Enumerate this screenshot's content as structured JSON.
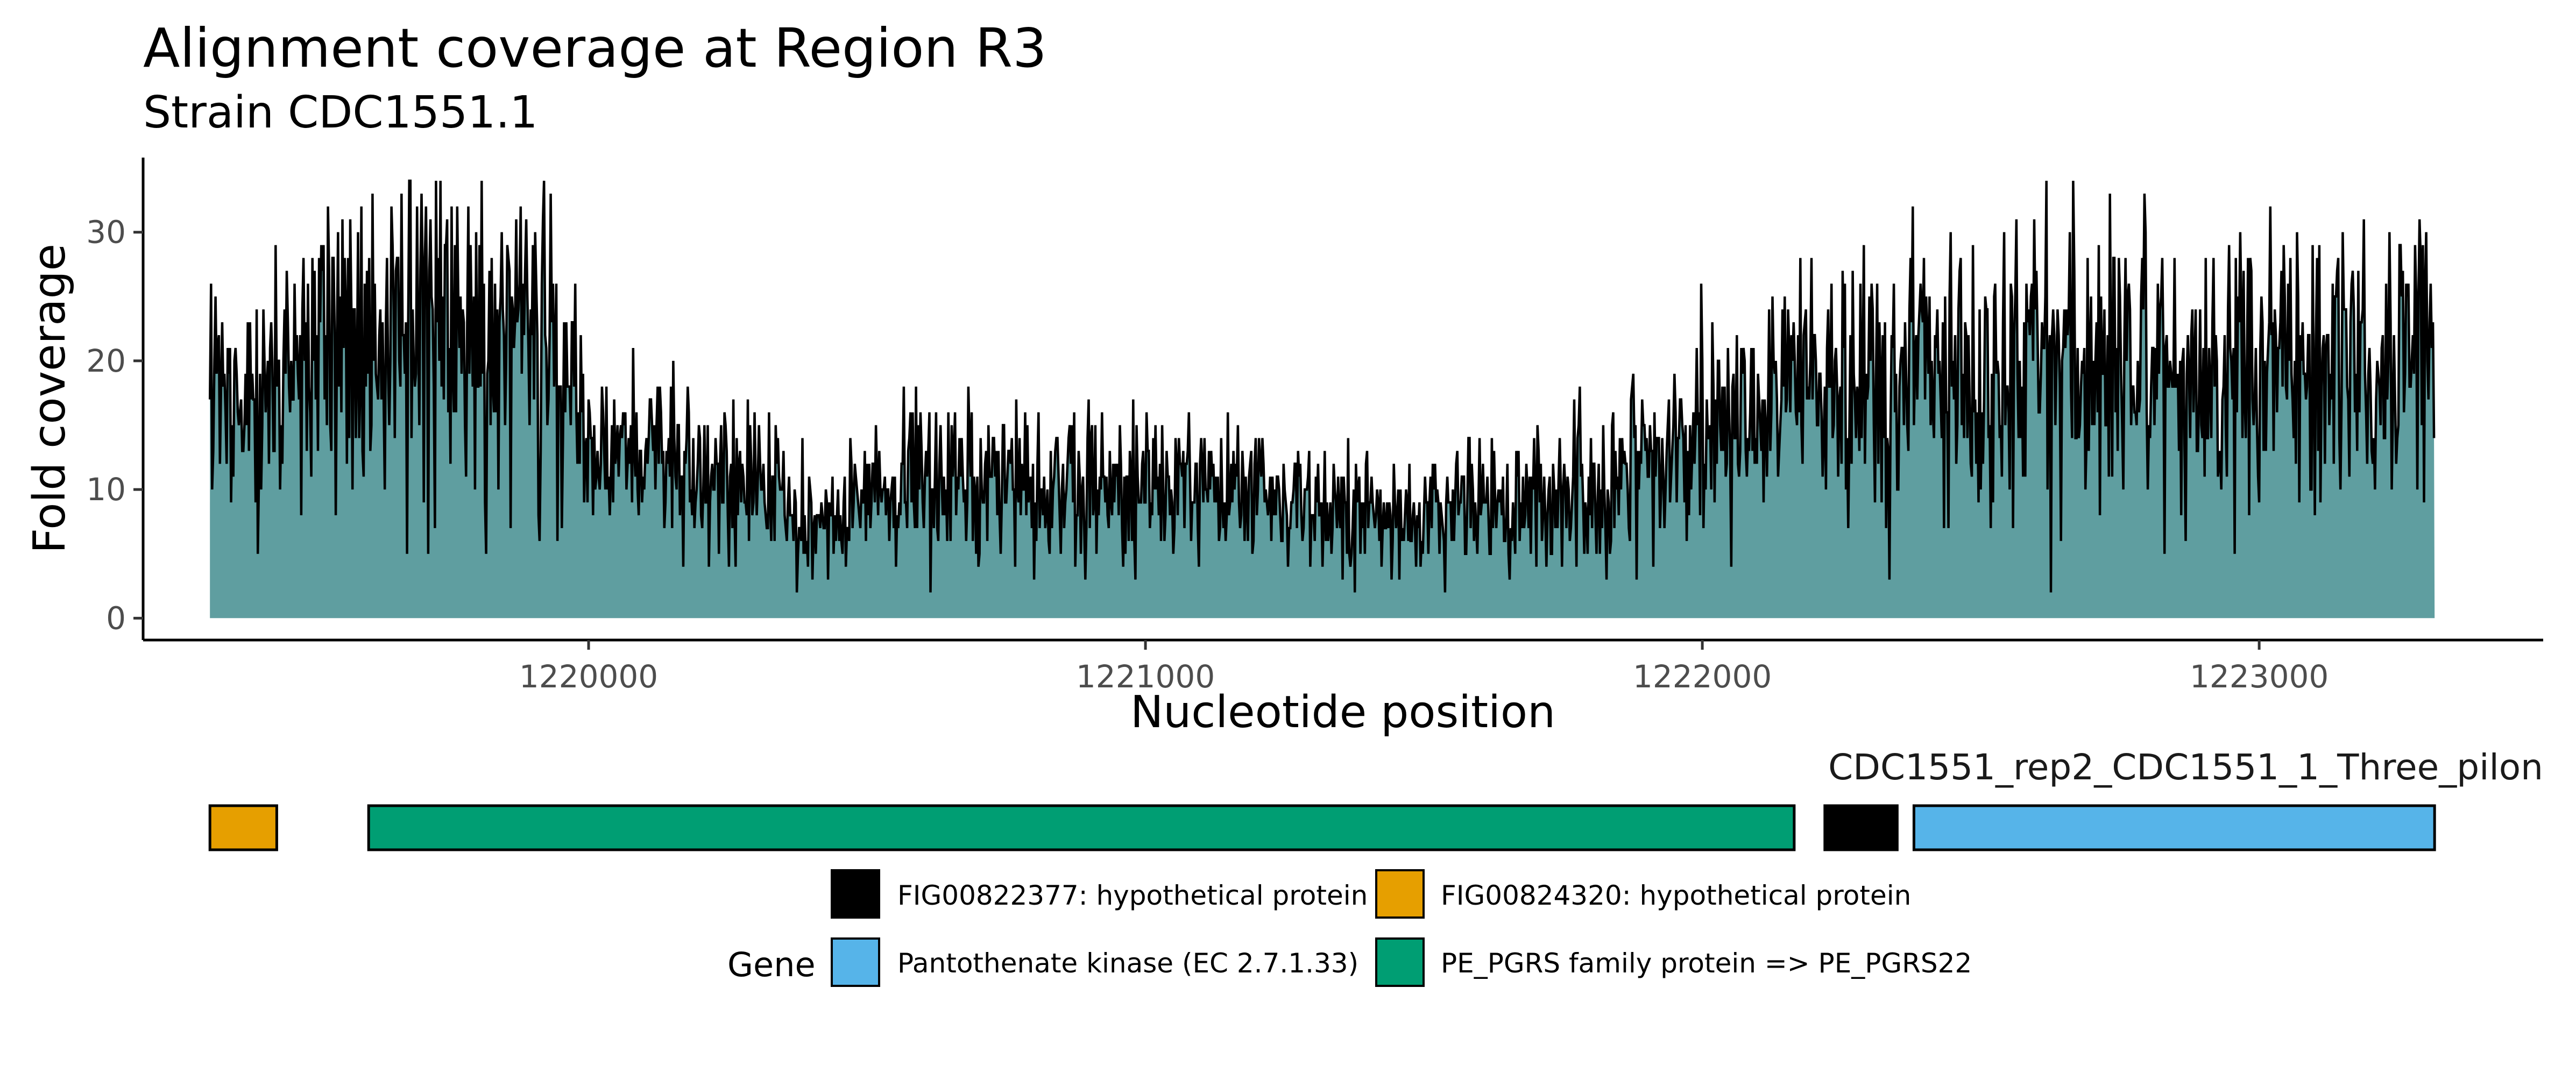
{
  "chart_data": {
    "type": "area",
    "title": "Alignment coverage at Region R3",
    "subtitle": "Strain CDC1551.1",
    "xlabel": "Nucleotide position",
    "ylabel": "Fold coverage",
    "xlim": [
      1219200,
      1223510
    ],
    "ylim": [
      -1.7,
      35.8
    ],
    "x_ticks": [
      1220000,
      1221000,
      1222000,
      1223000
    ],
    "x_tick_labels": [
      "1220000",
      "1221000",
      "1222000",
      "1223000"
    ],
    "y_ticks": [
      0,
      10,
      20,
      30
    ],
    "y_tick_labels": [
      "0",
      "10",
      "20",
      "30"
    ],
    "grid": false,
    "colors": {
      "fill": "#5F9EA0",
      "line": "#000000"
    },
    "coverage": {
      "x_start": 1219320,
      "x_end": 1223315,
      "profile": [
        [
          1219320,
          16
        ],
        [
          1219450,
          17
        ],
        [
          1219550,
          21
        ],
        [
          1219650,
          25
        ],
        [
          1219750,
          22
        ],
        [
          1219850,
          22
        ],
        [
          1219950,
          19
        ],
        [
          1220000,
          14
        ],
        [
          1220100,
          12
        ],
        [
          1220200,
          11
        ],
        [
          1220300,
          10
        ],
        [
          1220400,
          8
        ],
        [
          1220450,
          7
        ],
        [
          1220500,
          10
        ],
        [
          1220700,
          10
        ],
        [
          1220900,
          10
        ],
        [
          1221100,
          10
        ],
        [
          1221300,
          9
        ],
        [
          1221500,
          8
        ],
        [
          1221700,
          9
        ],
        [
          1221850,
          11
        ],
        [
          1221950,
          13
        ],
        [
          1222050,
          15
        ],
        [
          1222150,
          17
        ],
        [
          1222300,
          19
        ],
        [
          1222500,
          19
        ],
        [
          1222700,
          20
        ],
        [
          1222900,
          19
        ],
        [
          1223100,
          20
        ],
        [
          1223315,
          20
        ]
      ],
      "min": 1,
      "max": 34
    },
    "gene_track": {
      "track_label": "CDC1551_rep2_CDC1551_1_Three_pilon",
      "genes": [
        {
          "start": 1219320,
          "end": 1219440,
          "product": "FIG00824320: hypothetical protein",
          "color": "#E69F00"
        },
        {
          "start": 1219605,
          "end": 1222165,
          "product": "PE_PGRS family protein => PE_PGRS22",
          "color": "#009E73"
        },
        {
          "start": 1222220,
          "end": 1222350,
          "product": "FIG00822377: hypothetical protein",
          "color": "#000000"
        },
        {
          "start": 1222380,
          "end": 1223315,
          "product": "Pantothenate kinase (EC 2.7.1.33)",
          "color": "#56B4E9"
        }
      ]
    },
    "legend": {
      "title": "Gene",
      "placement": "bottom",
      "entries": [
        {
          "label": "FIG00822377: hypothetical protein",
          "color": "#000000"
        },
        {
          "label": "FIG00824320: hypothetical protein",
          "color": "#E69F00"
        },
        {
          "label": "Pantothenate kinase (EC 2.7.1.33)",
          "color": "#56B4E9"
        },
        {
          "label": "PE_PGRS family protein => PE_PGRS22",
          "color": "#009E73"
        }
      ]
    }
  }
}
